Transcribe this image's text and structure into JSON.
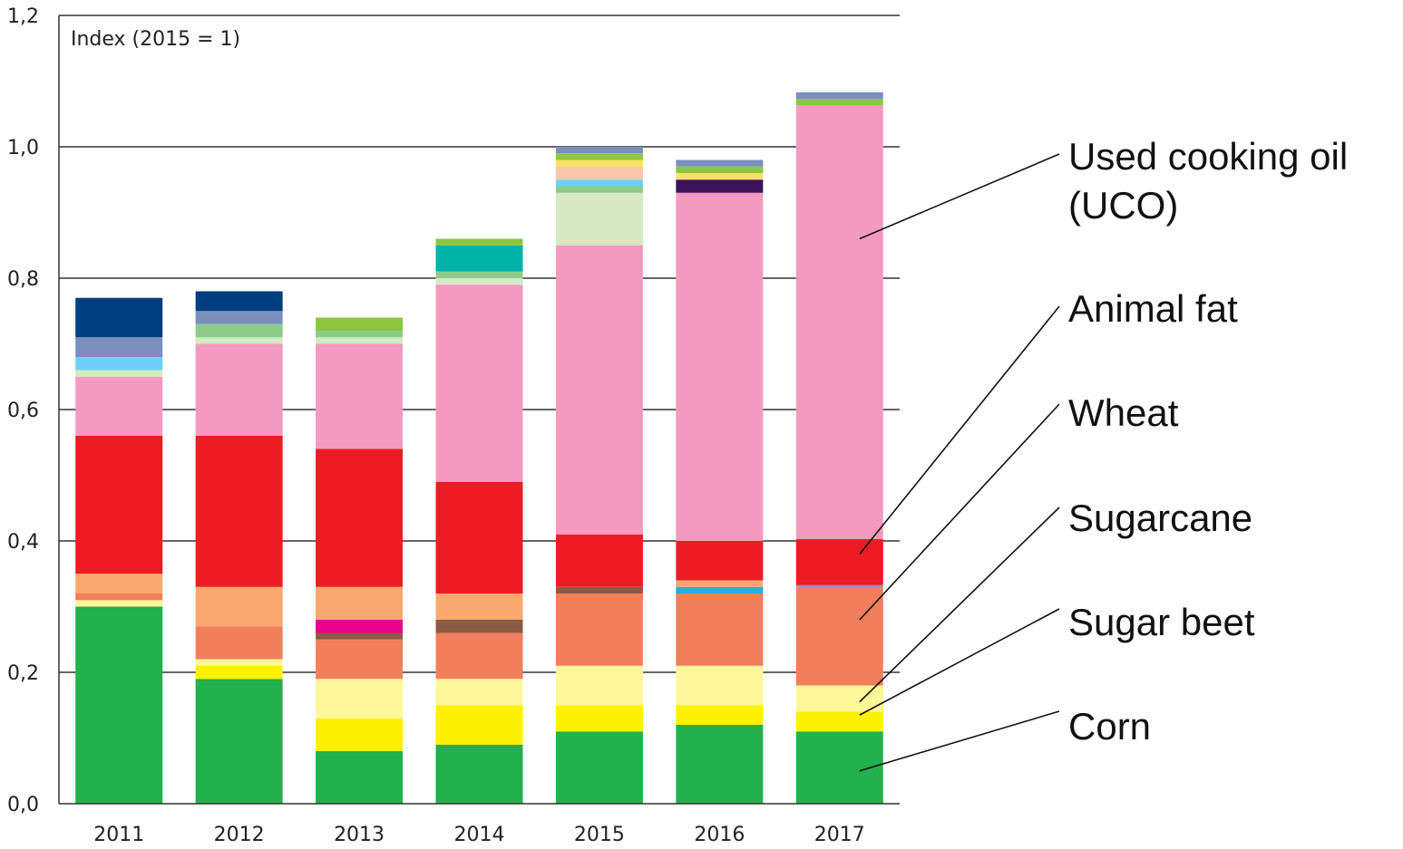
{
  "chart_data": {
    "type": "bar",
    "stacked": true,
    "title": "",
    "xlabel": "",
    "ylabel": "",
    "index_label": "Index (2015 = 1)",
    "ylim": [
      0,
      1.2
    ],
    "yticks": [
      "0,0",
      "0,2",
      "0,4",
      "0,6",
      "0,8",
      "1,0",
      "1,2"
    ],
    "ytick_values": [
      0,
      0.2,
      0.4,
      0.6,
      0.8,
      1.0,
      1.2
    ],
    "grid": true,
    "categories": [
      "2011",
      "2012",
      "2013",
      "2014",
      "2015",
      "2016",
      "2017"
    ],
    "series": [
      {
        "color": "#22b14c",
        "values": [
          0.3,
          0.19,
          0.08,
          0.09,
          0.11,
          0.12,
          0.11
        ]
      },
      {
        "color": "#fff200",
        "values": [
          0.0,
          0.02,
          0.05,
          0.06,
          0.04,
          0.03,
          0.03
        ]
      },
      {
        "color": "#fff799",
        "values": [
          0.01,
          0.01,
          0.06,
          0.04,
          0.06,
          0.06,
          0.04
        ]
      },
      {
        "color": "#f37e5c",
        "values": [
          0.01,
          0.05,
          0.06,
          0.07,
          0.11,
          0.11,
          0.15
        ]
      },
      {
        "color": "#8c5a45",
        "values": [
          0.0,
          0.0,
          0.01,
          0.02,
          0.01,
          0.0,
          0.0
        ]
      },
      {
        "color": "#ec008c",
        "values": [
          0.0,
          0.0,
          0.02,
          0.0,
          0.0,
          0.0,
          0.0
        ]
      },
      {
        "color": "#27aae1",
        "values": [
          0.0,
          0.0,
          0.0,
          0.0,
          0.0,
          0.01,
          0.0
        ]
      },
      {
        "color": "#f9a870",
        "values": [
          0.03,
          0.06,
          0.05,
          0.04,
          0.0,
          0.01,
          0.0
        ]
      },
      {
        "color": "#7b8fbf",
        "values": [
          0.0,
          0.0,
          0.0,
          0.0,
          0.0,
          0.0,
          0.003
        ]
      },
      {
        "color": "#ed1c24",
        "values": [
          0.21,
          0.23,
          0.21,
          0.17,
          0.08,
          0.06,
          0.07
        ]
      },
      {
        "color": "#f49ac1",
        "values": [
          0.09,
          0.14,
          0.16,
          0.3,
          0.44,
          0.53,
          0.66
        ]
      },
      {
        "color": "#d6e8c4",
        "values": [
          0.01,
          0.01,
          0.01,
          0.01,
          0.08,
          0.0,
          0.0
        ]
      },
      {
        "color": "#8ccb8a",
        "values": [
          0.0,
          0.02,
          0.01,
          0.01,
          0.01,
          0.0,
          0.0
        ]
      },
      {
        "color": "#00b3a7",
        "values": [
          0.0,
          0.0,
          0.0,
          0.04,
          0.0,
          0.0,
          0.0
        ]
      },
      {
        "color": "#6dcff6",
        "values": [
          0.02,
          0.0,
          0.0,
          0.0,
          0.01,
          0.0,
          0.0
        ]
      },
      {
        "color": "#3b1158",
        "values": [
          0.0,
          0.0,
          0.0,
          0.0,
          0.0,
          0.02,
          0.0
        ]
      },
      {
        "color": "#fbc7ac",
        "values": [
          0.0,
          0.0,
          0.0,
          0.0,
          0.02,
          0.0,
          0.0
        ]
      },
      {
        "color": "#f7e16b",
        "values": [
          0.0,
          0.0,
          0.0,
          0.0,
          0.01,
          0.01,
          0.0
        ]
      },
      {
        "color": "#8dc63f",
        "values": [
          0.0,
          0.0,
          0.02,
          0.01,
          0.01,
          0.01,
          0.01
        ]
      },
      {
        "color": "#7b8fbf",
        "values": [
          0.03,
          0.02,
          0.0,
          0.0,
          0.01,
          0.01,
          0.01
        ]
      },
      {
        "color": "#003f7f",
        "values": [
          0.06,
          0.03,
          0.0,
          0.0,
          0.0,
          0.0,
          0.0
        ]
      }
    ],
    "annotations": [
      {
        "lines": [
          "Used cooking oil",
          "(UCO)"
        ],
        "target_year": "2017",
        "target_value": 0.86
      },
      {
        "lines": [
          "Animal fat"
        ],
        "target_year": "2017",
        "target_value": 0.38
      },
      {
        "lines": [
          "Wheat"
        ],
        "target_year": "2017",
        "target_value": 0.28
      },
      {
        "lines": [
          "Sugarcane"
        ],
        "target_year": "2017",
        "target_value": 0.155
      },
      {
        "lines": [
          "Sugar beet"
        ],
        "target_year": "2017",
        "target_value": 0.135
      },
      {
        "lines": [
          "Corn"
        ],
        "target_year": "2017",
        "target_value": 0.05
      }
    ]
  }
}
